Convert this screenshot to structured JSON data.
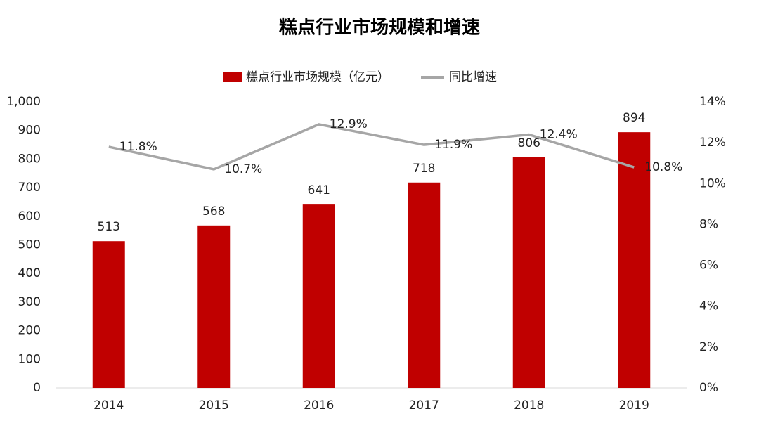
{
  "chart_data": {
    "type": "bar",
    "title": "糕点行业市场规模和增速",
    "categories": [
      "2014",
      "2015",
      "2016",
      "2017",
      "2018",
      "2019"
    ],
    "series": [
      {
        "name": "糕点行业市场规模（亿元）",
        "type": "bar",
        "color": "#c00000",
        "values": [
          513,
          568,
          641,
          718,
          806,
          894
        ]
      },
      {
        "name": "同比增速",
        "type": "line",
        "axis": "y2",
        "color": "#a6a6a6",
        "values": [
          11.8,
          10.7,
          12.9,
          11.9,
          12.4,
          10.8
        ],
        "value_labels": [
          "11.8%",
          "10.7%",
          "12.9%",
          "11.9%",
          "12.4%",
          "10.8%"
        ]
      }
    ],
    "ylim": [
      0,
      1000
    ],
    "yticks": [
      0,
      100,
      200,
      300,
      400,
      500,
      600,
      700,
      800,
      900,
      {
        "value": 1000,
        "label": "1,000"
      }
    ],
    "y2lim": [
      0,
      14
    ],
    "y2ticks": [
      {
        "value": 0,
        "label": "0%"
      },
      {
        "value": 2,
        "label": "2%"
      },
      {
        "value": 4,
        "label": "4%"
      },
      {
        "value": 6,
        "label": "6%"
      },
      {
        "value": 8,
        "label": "8%"
      },
      {
        "value": 10,
        "label": "10%"
      },
      {
        "value": 12,
        "label": "12%"
      },
      {
        "value": 14,
        "label": "14%"
      }
    ],
    "legend": "top"
  }
}
